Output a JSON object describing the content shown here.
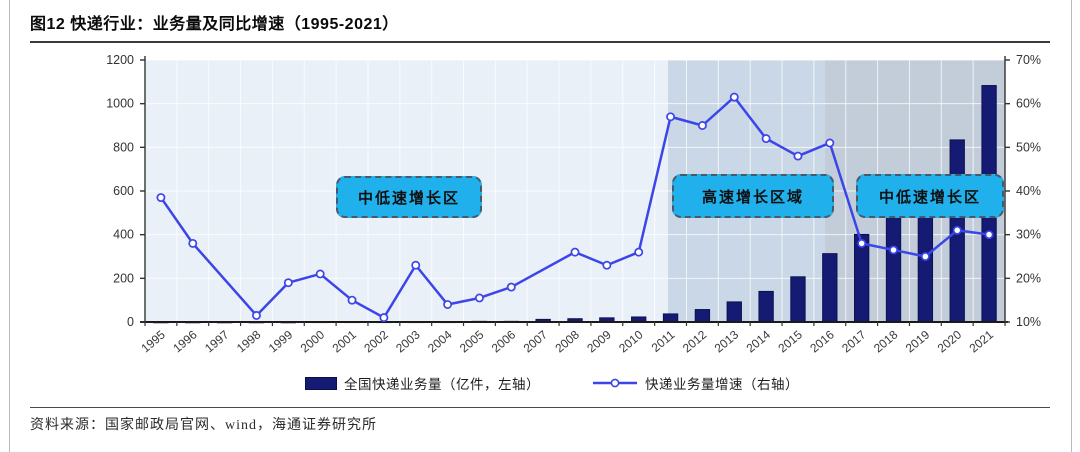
{
  "page": {
    "title": "图12 快递行业：业务量及同比增速（1995-2021）",
    "source": "资料来源：国家邮政局官网、wind，海通证券研究所"
  },
  "legend": {
    "bar_label": "全国快递业务量（亿件，左轴）",
    "line_label": "快递业务量增速（右轴）"
  },
  "annotations": [
    {
      "label": "中低速增长区"
    },
    {
      "label": "高速增长区域"
    },
    {
      "label": "中低速增长区"
    }
  ],
  "colors": {
    "bar": "#151b72",
    "bar_edge": "#0d1150",
    "line": "#3c45e8",
    "marker_fill": "#ffffff",
    "annotation_fill": "#20b1ec",
    "axis": "#333333",
    "baseline": "#1a1a1a",
    "gridline": "#ffffff"
  },
  "chart_data": {
    "type": "combo-bar-line",
    "title": "图12 快递行业：业务量及同比增速（1995-2021）",
    "categories": [
      "1995",
      "1996",
      "1997",
      "1998",
      "1999",
      "2000",
      "2001",
      "2002",
      "2003",
      "2004",
      "2005",
      "2006",
      "2007",
      "2008",
      "2009",
      "2010",
      "2011",
      "2012",
      "2013",
      "2014",
      "2015",
      "2016",
      "2017",
      "2018",
      "2019",
      "2020",
      "2021"
    ],
    "series": [
      {
        "name": "全国快递业务量（亿件，左轴）",
        "type": "bar",
        "axis": "left",
        "values": [
          1,
          1,
          1,
          1,
          1,
          2,
          2,
          2,
          2,
          2,
          3,
          3,
          12,
          15,
          19,
          23,
          37,
          57,
          92,
          140,
          207,
          313,
          401,
          507,
          635,
          834,
          1083
        ]
      },
      {
        "name": "快递业务量增速（右轴）",
        "type": "line",
        "axis": "right",
        "values": [
          38.5,
          28,
          null,
          11.5,
          19,
          21,
          15,
          11,
          23,
          14,
          15.5,
          18,
          null,
          26,
          23,
          26,
          57,
          55,
          61.5,
          52,
          48,
          51,
          28,
          26.5,
          25,
          31,
          30
        ]
      }
    ],
    "left_axis": {
      "min": 0,
      "max": 1200,
      "step": 200,
      "ticks": [
        "0",
        "200",
        "400",
        "600",
        "800",
        "1000",
        "1200"
      ]
    },
    "right_axis": {
      "min": 10,
      "max": 70,
      "step": 10,
      "ticks": [
        "10%",
        "20%",
        "30%",
        "40%",
        "50%",
        "60%",
        "70%"
      ]
    },
    "zones": [
      {
        "label": "中低速增长区",
        "start_index": 0,
        "end_index": 16.42,
        "color": "#e9f0f8"
      },
      {
        "label": "高速增长区域",
        "start_index": 16.42,
        "end_index": 21.35,
        "color": "#c9d7e6"
      },
      {
        "label": "中低速增长区",
        "start_index": 21.35,
        "end_index": 27,
        "color": "#c2cdd9"
      }
    ],
    "grid": true,
    "legend_position": "bottom"
  }
}
